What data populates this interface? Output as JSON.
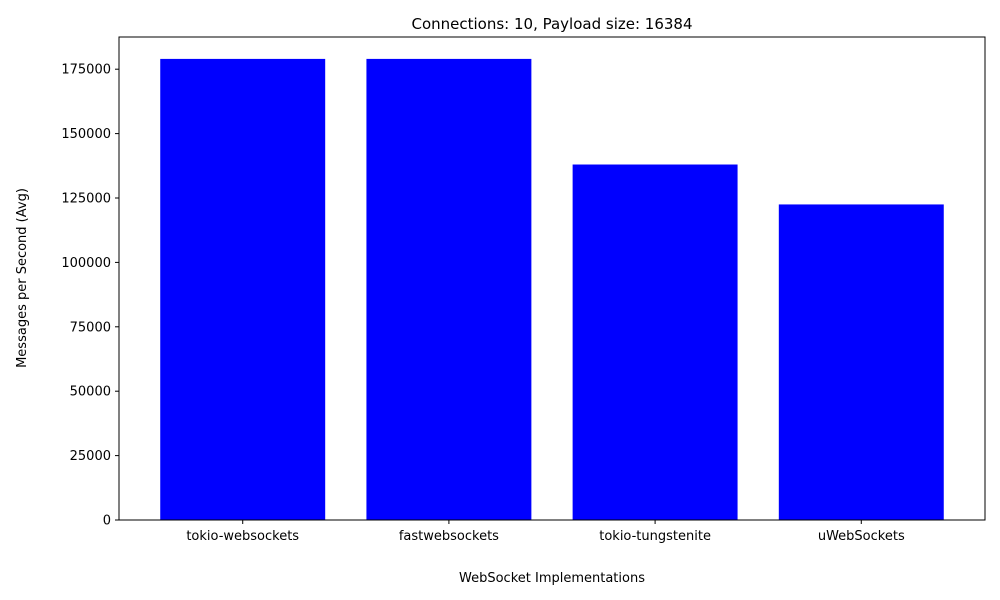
{
  "chart_data": {
    "type": "bar",
    "title": "Connections: 10, Payload size: 16384",
    "xlabel": "WebSocket Implementations",
    "ylabel": "Messages per Second (Avg)",
    "categories": [
      "tokio-websockets",
      "fastwebsockets",
      "tokio-tungstenite",
      "uWebSockets"
    ],
    "values": [
      179000,
      179000,
      138000,
      122500
    ],
    "ylim": [
      0,
      187500
    ],
    "yticks": [
      0,
      25000,
      50000,
      75000,
      100000,
      125000,
      150000,
      175000
    ],
    "bar_color": "#0000ff",
    "grid": false,
    "legend": "none"
  }
}
